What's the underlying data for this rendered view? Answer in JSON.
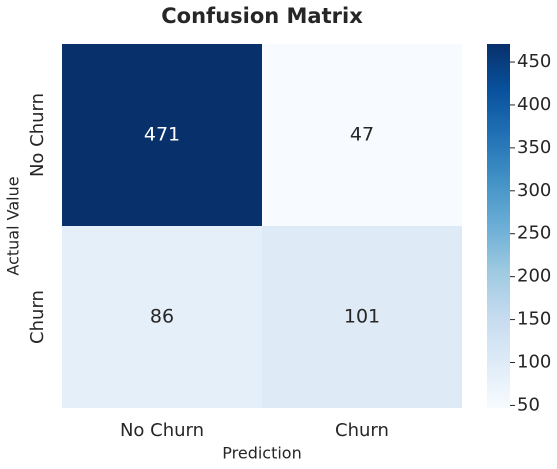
{
  "chart_data": {
    "type": "heatmap",
    "title": "Confusion Matrix",
    "x_label": "Prediction",
    "y_label": "Actual Value",
    "x_categories": [
      "No Churn",
      "Churn"
    ],
    "y_categories": [
      "No Churn",
      "Churn"
    ],
    "values": [
      [
        471,
        47
      ],
      [
        86,
        101
      ]
    ],
    "colormap": "Blues",
    "clim": [
      47,
      471
    ],
    "cticks": [
      50,
      100,
      150,
      200,
      250,
      300,
      350,
      400,
      450
    ]
  }
}
